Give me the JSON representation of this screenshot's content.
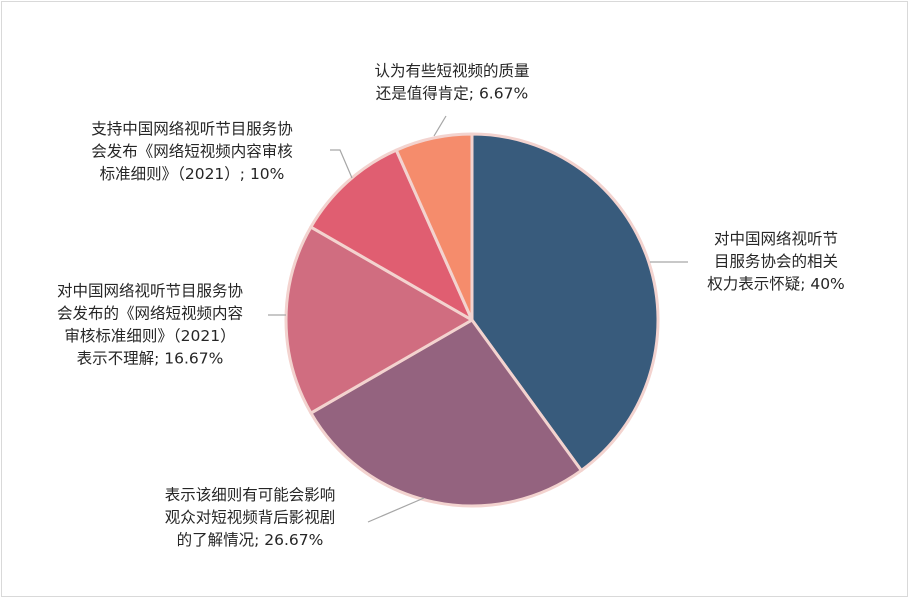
{
  "chart_data": {
    "type": "pie",
    "title": "",
    "slices": [
      {
        "value": 40,
        "label_lines": [
          "对中国网络视听节",
          "目服务协会的相关",
          "权力表示怀疑; 40%"
        ],
        "color": "#385b7c"
      },
      {
        "value": 26.67,
        "label_lines": [
          "表示该细则有可能会影响",
          "观众对短视频背后影视剧",
          "的了解情况; 26.67%"
        ],
        "color": "#94637f"
      },
      {
        "value": 16.67,
        "label_lines": [
          "对中国网络视听节目服务协",
          "会发布的《网络短视频内容",
          "审核标准细则》（2021）",
          "表示不理解; 16.67%"
        ],
        "color": "#d06d80"
      },
      {
        "value": 10,
        "label_lines": [
          "支持中国网络视听节目服务协",
          "会发布《网络短视频内容审核",
          "标准细则》（2021）; 10%"
        ],
        "color": "#e05e71"
      },
      {
        "value": 6.67,
        "label_lines": [
          "认为有些短视频的质量",
          "还是值得肯定; 6.67%"
        ],
        "color": "#f58c6c"
      }
    ],
    "start_angle": "12 o'clock",
    "direction": "clockwise",
    "legend": "none",
    "data_labels": "outside with leader lines"
  }
}
